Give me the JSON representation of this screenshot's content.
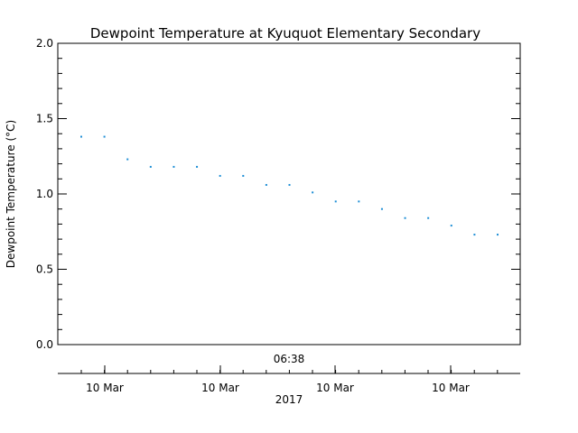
{
  "chart_data": {
    "type": "scatter",
    "title": "Dewpoint Temperature at Kyuquot Elementary Secondary",
    "ylabel": "Dewpoint Temperature (°C)",
    "xlabel": "2017",
    "time_label": "06:38",
    "ylim": [
      0.0,
      2.0
    ],
    "yticks": [
      "0.0",
      "0.5",
      "1.0",
      "1.5",
      "2.0"
    ],
    "ytick_values": [
      0.0,
      0.5,
      1.0,
      1.5,
      2.0
    ],
    "xticks": [
      "10 Mar",
      "10 Mar",
      "10 Mar",
      "10 Mar"
    ],
    "grid": false,
    "marker_color": "#1f8fd6",
    "series": [
      {
        "values": [
          1.38,
          1.38,
          1.23,
          1.18,
          1.18,
          1.18,
          1.12,
          1.12,
          1.06,
          1.06,
          1.01,
          0.95,
          0.95,
          0.9,
          0.84,
          0.84,
          0.79,
          0.73,
          0.73
        ]
      }
    ]
  }
}
